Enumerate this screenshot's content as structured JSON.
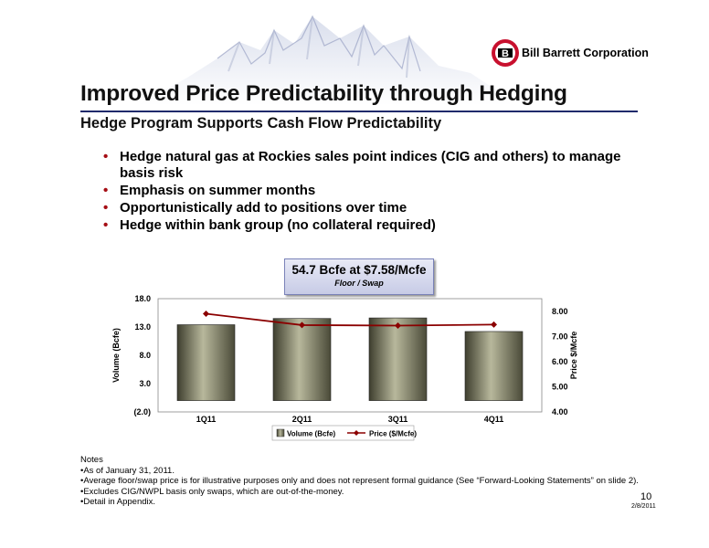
{
  "header": {
    "company": "Bill Barrett Corporation",
    "logo_letter": "B",
    "title": "Improved Price Predictability through Hedging",
    "subtitle": "Hedge Program Supports Cash Flow Predictability"
  },
  "bullets": [
    "Hedge natural gas at Rockies sales point indices (CIG and others) to manage basis risk",
    "Emphasis on summer months",
    "Opportunistically add to positions over time",
    "Hedge within bank group (no collateral required)"
  ],
  "bullet_symbol": "•",
  "callout": {
    "main": "54.7 Bcfe at $7.58/Mcfe",
    "sub": "Floor / Swap"
  },
  "chart_data": {
    "type": "bar",
    "categories": [
      "1Q11",
      "2Q11",
      "3Q11",
      "4Q11"
    ],
    "series": [
      {
        "name": "Volume (Bcfe)",
        "type": "bar",
        "axis": "left",
        "values": [
          13.4,
          14.5,
          14.6,
          12.2
        ],
        "color": "#6b6b52"
      },
      {
        "name": "Price ($/Mcfe)",
        "type": "line",
        "axis": "right",
        "values": [
          7.9,
          7.45,
          7.43,
          7.47
        ],
        "color": "#8b0000"
      }
    ],
    "ylabel": "Volume (Bcfe)",
    "y2label": "Price $/Mcfe",
    "ylim": [
      -2.0,
      18.0
    ],
    "y_ticks": [
      "(2.0)",
      "3.0",
      "8.0",
      "13.0",
      "18.0"
    ],
    "y2lim": [
      4.0,
      8.5
    ],
    "y2_ticks": [
      "4.00",
      "5.00",
      "6.00",
      "7.00",
      "8.00"
    ],
    "legend": [
      "Volume (Bcfe)",
      "Price ($/Mcfe)"
    ],
    "legend_position": "bottom",
    "grid": false
  },
  "notes": {
    "heading": "Notes",
    "items": [
      "As of January 31, 2011.",
      "Average floor/swap price is for illustrative purposes only and does not represent formal guidance (See “Forward-Looking Statements” on slide 2).",
      "Excludes CIG/NWPL basis only swaps, which are out-of-the-money.",
      "Detail in Appendix."
    ]
  },
  "footer": {
    "page_number": "10",
    "date": "2/8/2011"
  }
}
